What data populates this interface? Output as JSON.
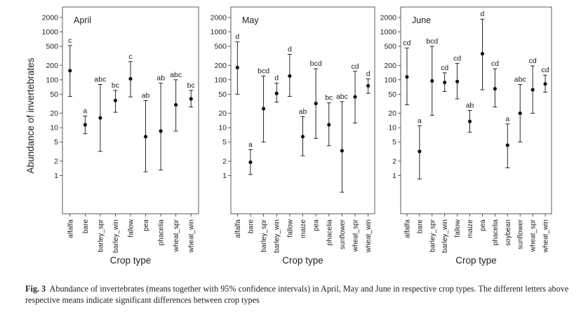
{
  "chart_data": {
    "type": "scatter",
    "ylabel": "Abundance of invertebrates",
    "xlabel": "Crop type",
    "yscale": "log",
    "yticks": [
      1,
      2,
      5,
      10,
      20,
      50,
      100,
      200,
      500,
      1000,
      2000
    ],
    "ytick_labels": [
      "1",
      "2",
      "5",
      "10",
      "20",
      "50",
      "100",
      "200",
      "500",
      "1000",
      "2000"
    ],
    "grid": false,
    "panels": [
      {
        "title": "April",
        "categories": [
          "alfalfa",
          "bare",
          "barley_spr",
          "barley_win",
          "fallow",
          "pea",
          "phacelia",
          "wheat_spr",
          "wheat_win"
        ],
        "mean": [
          155,
          11.5,
          16,
          37,
          105,
          6.5,
          8.5,
          30,
          40
        ],
        "lower": [
          45,
          7.5,
          3.2,
          21,
          44,
          1.2,
          1.3,
          8.5,
          27
        ],
        "upper": [
          520,
          17.5,
          80,
          60,
          240,
          37,
          85,
          100,
          60
        ],
        "letters": [
          "c",
          "a",
          "abc",
          "bc",
          "c",
          "ab",
          "ab",
          "abc",
          "bc"
        ]
      },
      {
        "title": "May",
        "categories": [
          "alfalfa",
          "bare",
          "barley_spr",
          "barley_win",
          "fallow",
          "maize",
          "pea",
          "phacelia",
          "sunflower",
          "wheat_spr",
          "wheat_win"
        ],
        "mean": [
          180,
          1.9,
          25,
          52,
          120,
          6.5,
          32,
          11.5,
          3.3,
          44,
          75
        ],
        "lower": [
          50,
          1.05,
          5,
          34,
          45,
          2.6,
          6,
          4.2,
          0.45,
          12.5,
          52
        ],
        "upper": [
          620,
          3.5,
          120,
          85,
          340,
          17,
          170,
          33,
          35,
          150,
          105
        ],
        "letters": [
          "d",
          "a",
          "bcd",
          "d",
          "d",
          "ab",
          "bcd",
          "bc",
          "abc",
          "cd",
          "d"
        ]
      },
      {
        "title": "June",
        "categories": [
          "alfalfa",
          "bare",
          "barley_spr",
          "barley_win",
          "fallow",
          "maize",
          "pea",
          "phacelia",
          "soybean",
          "sunflower",
          "wheat_spr",
          "wheat_win"
        ],
        "mean": [
          115,
          3.2,
          95,
          88,
          92,
          13.5,
          350,
          65,
          4.3,
          20,
          62,
          82
        ],
        "lower": [
          30,
          0.85,
          18,
          57,
          40,
          8,
          62,
          27,
          1.45,
          5,
          20,
          55
        ],
        "upper": [
          460,
          11,
          500,
          140,
          220,
          23,
          1850,
          170,
          12,
          80,
          195,
          125
        ],
        "letters": [
          "cd",
          "a",
          "bcd",
          "cd",
          "cd",
          "ab",
          "d",
          "cd",
          "a",
          "abc",
          "cd",
          "cd"
        ]
      }
    ]
  },
  "caption": {
    "label": "Fig. 3",
    "text": "Abundance of invertebrates (means together with 95% confidence intervals) in April, May and June in respective crop types. The different letters above respective means indicate significant differences between crop types"
  }
}
